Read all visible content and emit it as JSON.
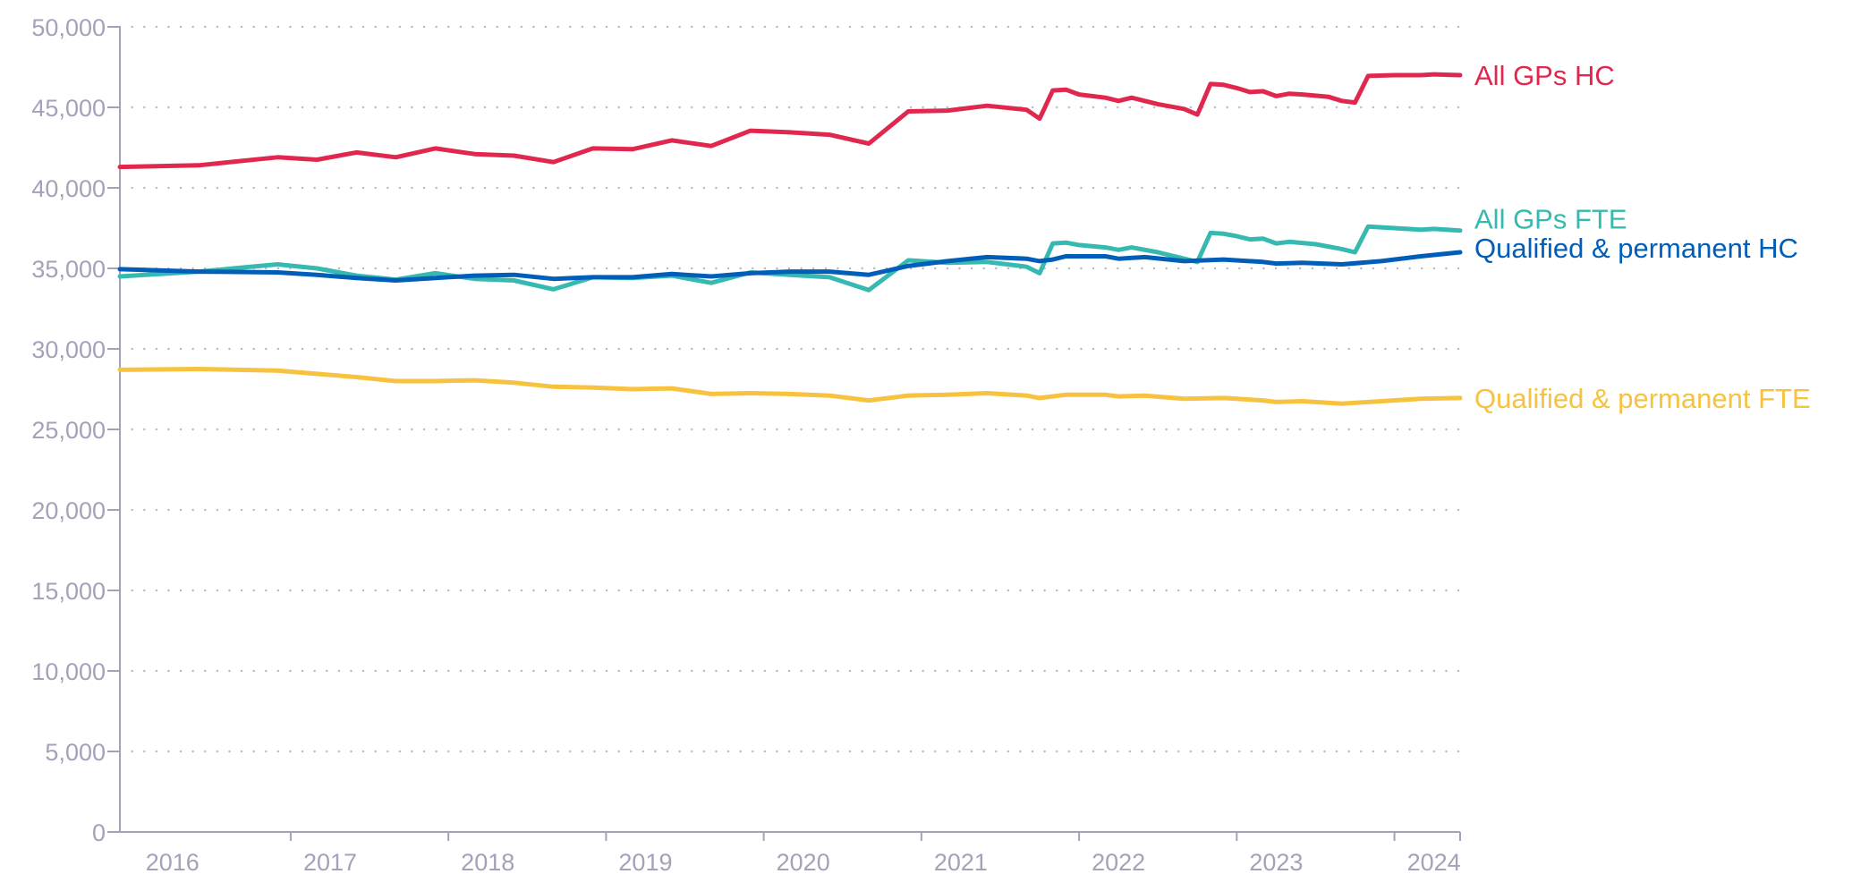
{
  "chart_data": {
    "type": "line",
    "title": "",
    "xlabel": "",
    "ylabel": "",
    "x_ticks": [
      "2016",
      "2017",
      "2018",
      "2019",
      "2020",
      "2021",
      "2022",
      "2023",
      "2024"
    ],
    "y_ticks": [
      "0",
      "5,000",
      "10,000",
      "15,000",
      "20,000",
      "25,000",
      "30,000",
      "35,000",
      "40,000",
      "45,000",
      "50,000"
    ],
    "ylim": [
      0,
      50000
    ],
    "xlim": [
      "2015-09",
      "2024-03"
    ],
    "grid": "horizontal dotted",
    "legend": "inline labels at right end of each line",
    "series": [
      {
        "name": "All GPs HC",
        "color": "#e0284f",
        "points": [
          [
            "2015-09",
            41300
          ],
          [
            "2016-03",
            41400
          ],
          [
            "2016-09",
            41900
          ],
          [
            "2016-12",
            41750
          ],
          [
            "2017-03",
            42200
          ],
          [
            "2017-06",
            41900
          ],
          [
            "2017-09",
            42450
          ],
          [
            "2017-12",
            42100
          ],
          [
            "2018-03",
            42000
          ],
          [
            "2018-06",
            41600
          ],
          [
            "2018-09",
            42450
          ],
          [
            "2018-12",
            42400
          ],
          [
            "2019-03",
            42950
          ],
          [
            "2019-06",
            42600
          ],
          [
            "2019-09",
            43550
          ],
          [
            "2019-12",
            43450
          ],
          [
            "2020-03",
            43300
          ],
          [
            "2020-06",
            42750
          ],
          [
            "2020-09",
            44750
          ],
          [
            "2020-12",
            44800
          ],
          [
            "2021-03",
            45100
          ],
          [
            "2021-06",
            44850
          ],
          [
            "2021-07",
            44300
          ],
          [
            "2021-08",
            46050
          ],
          [
            "2021-09",
            46100
          ],
          [
            "2021-10",
            45800
          ],
          [
            "2021-12",
            45600
          ],
          [
            "2022-01",
            45400
          ],
          [
            "2022-02",
            45600
          ],
          [
            "2022-03",
            45400
          ],
          [
            "2022-04",
            45200
          ],
          [
            "2022-06",
            44900
          ],
          [
            "2022-07",
            44550
          ],
          [
            "2022-08",
            46450
          ],
          [
            "2022-09",
            46400
          ],
          [
            "2022-10",
            46200
          ],
          [
            "2022-11",
            45950
          ],
          [
            "2022-12",
            46000
          ],
          [
            "2023-01",
            45700
          ],
          [
            "2023-02",
            45850
          ],
          [
            "2023-03",
            45800
          ],
          [
            "2023-05",
            45650
          ],
          [
            "2023-06",
            45400
          ],
          [
            "2023-07",
            45300
          ],
          [
            "2023-08",
            46950
          ],
          [
            "2023-10",
            47000
          ],
          [
            "2023-12",
            47000
          ],
          [
            "2024-01",
            47050
          ],
          [
            "2024-03",
            47000
          ]
        ]
      },
      {
        "name": "All GPs FTE",
        "color": "#36b9b0",
        "points": [
          [
            "2015-09",
            34500
          ],
          [
            "2016-03",
            34800
          ],
          [
            "2016-09",
            35250
          ],
          [
            "2016-12",
            35000
          ],
          [
            "2017-03",
            34550
          ],
          [
            "2017-06",
            34300
          ],
          [
            "2017-09",
            34700
          ],
          [
            "2017-12",
            34350
          ],
          [
            "2018-03",
            34250
          ],
          [
            "2018-06",
            33700
          ],
          [
            "2018-09",
            34450
          ],
          [
            "2018-12",
            34400
          ],
          [
            "2019-03",
            34550
          ],
          [
            "2019-06",
            34100
          ],
          [
            "2019-09",
            34750
          ],
          [
            "2019-12",
            34600
          ],
          [
            "2020-03",
            34450
          ],
          [
            "2020-06",
            33650
          ],
          [
            "2020-09",
            35500
          ],
          [
            "2020-12",
            35350
          ],
          [
            "2021-03",
            35400
          ],
          [
            "2021-06",
            35100
          ],
          [
            "2021-07",
            34700
          ],
          [
            "2021-08",
            36550
          ],
          [
            "2021-09",
            36600
          ],
          [
            "2021-10",
            36450
          ],
          [
            "2021-12",
            36300
          ],
          [
            "2022-01",
            36150
          ],
          [
            "2022-02",
            36300
          ],
          [
            "2022-04",
            36000
          ],
          [
            "2022-06",
            35600
          ],
          [
            "2022-07",
            35400
          ],
          [
            "2022-08",
            37200
          ],
          [
            "2022-09",
            37150
          ],
          [
            "2022-10",
            37000
          ],
          [
            "2022-11",
            36800
          ],
          [
            "2022-12",
            36850
          ],
          [
            "2023-01",
            36550
          ],
          [
            "2023-02",
            36650
          ],
          [
            "2023-04",
            36500
          ],
          [
            "2023-06",
            36200
          ],
          [
            "2023-07",
            36000
          ],
          [
            "2023-08",
            37600
          ],
          [
            "2023-10",
            37500
          ],
          [
            "2023-12",
            37400
          ],
          [
            "2024-01",
            37450
          ],
          [
            "2024-03",
            37350
          ]
        ]
      },
      {
        "name": "Qualified & permanent HC",
        "color": "#005eb8",
        "points": [
          [
            "2015-09",
            34950
          ],
          [
            "2016-03",
            34800
          ],
          [
            "2016-09",
            34750
          ],
          [
            "2016-12",
            34600
          ],
          [
            "2017-03",
            34400
          ],
          [
            "2017-06",
            34250
          ],
          [
            "2017-09",
            34400
          ],
          [
            "2017-12",
            34550
          ],
          [
            "2018-03",
            34600
          ],
          [
            "2018-06",
            34350
          ],
          [
            "2018-09",
            34450
          ],
          [
            "2018-12",
            34450
          ],
          [
            "2019-03",
            34650
          ],
          [
            "2019-06",
            34500
          ],
          [
            "2019-09",
            34700
          ],
          [
            "2019-12",
            34800
          ],
          [
            "2020-03",
            34800
          ],
          [
            "2020-06",
            34600
          ],
          [
            "2020-09",
            35150
          ],
          [
            "2020-12",
            35450
          ],
          [
            "2021-03",
            35700
          ],
          [
            "2021-06",
            35600
          ],
          [
            "2021-07",
            35450
          ],
          [
            "2021-08",
            35550
          ],
          [
            "2021-09",
            35750
          ],
          [
            "2021-12",
            35750
          ],
          [
            "2022-01",
            35600
          ],
          [
            "2022-03",
            35700
          ],
          [
            "2022-06",
            35450
          ],
          [
            "2022-09",
            35550
          ],
          [
            "2022-12",
            35400
          ],
          [
            "2023-01",
            35300
          ],
          [
            "2023-03",
            35350
          ],
          [
            "2023-06",
            35250
          ],
          [
            "2023-09",
            35450
          ],
          [
            "2023-12",
            35750
          ],
          [
            "2024-03",
            36000
          ]
        ]
      },
      {
        "name": "Qualified & permanent FTE",
        "color": "#f6c240",
        "points": [
          [
            "2015-09",
            28700
          ],
          [
            "2016-03",
            28750
          ],
          [
            "2016-09",
            28650
          ],
          [
            "2016-12",
            28450
          ],
          [
            "2017-03",
            28250
          ],
          [
            "2017-06",
            28000
          ],
          [
            "2017-09",
            28000
          ],
          [
            "2017-12",
            28050
          ],
          [
            "2018-03",
            27900
          ],
          [
            "2018-06",
            27650
          ],
          [
            "2018-09",
            27600
          ],
          [
            "2018-12",
            27500
          ],
          [
            "2019-03",
            27550
          ],
          [
            "2019-06",
            27200
          ],
          [
            "2019-09",
            27250
          ],
          [
            "2019-12",
            27200
          ],
          [
            "2020-03",
            27100
          ],
          [
            "2020-06",
            26800
          ],
          [
            "2020-09",
            27100
          ],
          [
            "2020-12",
            27150
          ],
          [
            "2021-03",
            27250
          ],
          [
            "2021-06",
            27100
          ],
          [
            "2021-07",
            26950
          ],
          [
            "2021-09",
            27150
          ],
          [
            "2021-12",
            27150
          ],
          [
            "2022-01",
            27050
          ],
          [
            "2022-03",
            27100
          ],
          [
            "2022-06",
            26900
          ],
          [
            "2022-09",
            26950
          ],
          [
            "2022-12",
            26800
          ],
          [
            "2023-01",
            26700
          ],
          [
            "2023-03",
            26750
          ],
          [
            "2023-06",
            26600
          ],
          [
            "2023-09",
            26750
          ],
          [
            "2023-12",
            26900
          ],
          [
            "2024-03",
            26950
          ]
        ]
      }
    ]
  }
}
